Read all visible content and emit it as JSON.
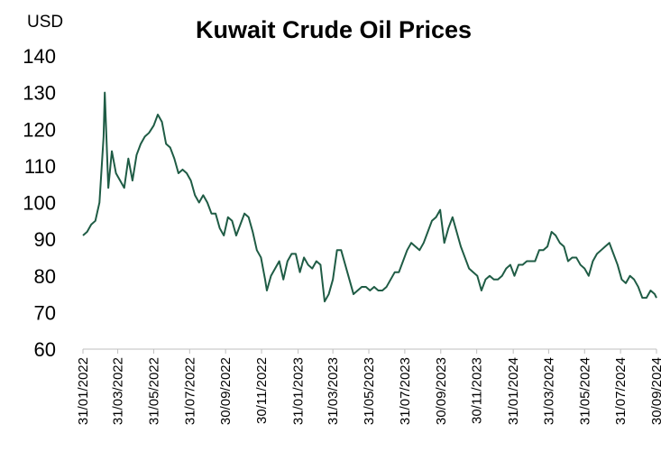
{
  "chart_data": {
    "type": "line",
    "title": "Kuwait Crude Oil Prices",
    "ylabel": "USD",
    "ylim": [
      60,
      140
    ],
    "yticks": [
      60,
      70,
      80,
      90,
      100,
      110,
      120,
      130,
      140
    ],
    "xlim": [
      "2022-01-31",
      "2024-09-30"
    ],
    "xticks": [
      {
        "value": "2022-01-31",
        "label": "31/01/2022"
      },
      {
        "value": "2022-03-31",
        "label": "31/03/2022"
      },
      {
        "value": "2022-05-31",
        "label": "31/05/2022"
      },
      {
        "value": "2022-07-31",
        "label": "31/07/2022"
      },
      {
        "value": "2022-09-30",
        "label": "30/09/2022"
      },
      {
        "value": "2022-11-30",
        "label": "30/11/2022"
      },
      {
        "value": "2023-01-31",
        "label": "31/01/2023"
      },
      {
        "value": "2023-03-31",
        "label": "31/03/2023"
      },
      {
        "value": "2023-05-31",
        "label": "31/05/2023"
      },
      {
        "value": "2023-07-31",
        "label": "31/07/2023"
      },
      {
        "value": "2023-09-30",
        "label": "30/09/2023"
      },
      {
        "value": "2023-11-30",
        "label": "30/11/2023"
      },
      {
        "value": "2024-01-31",
        "label": "31/01/2024"
      },
      {
        "value": "2024-03-31",
        "label": "31/03/2024"
      },
      {
        "value": "2024-05-31",
        "label": "31/05/2024"
      },
      {
        "value": "2024-07-31",
        "label": "31/07/2024"
      },
      {
        "value": "2024-09-30",
        "label": "30/09/2024"
      }
    ],
    "x": [
      "2022-01-31",
      "2022-02-07",
      "2022-02-14",
      "2022-02-21",
      "2022-02-28",
      "2022-03-07",
      "2022-03-09",
      "2022-03-15",
      "2022-03-21",
      "2022-03-28",
      "2022-04-04",
      "2022-04-11",
      "2022-04-18",
      "2022-04-25",
      "2022-05-02",
      "2022-05-09",
      "2022-05-16",
      "2022-05-23",
      "2022-05-31",
      "2022-06-07",
      "2022-06-14",
      "2022-06-21",
      "2022-06-28",
      "2022-07-05",
      "2022-07-12",
      "2022-07-19",
      "2022-07-26",
      "2022-08-02",
      "2022-08-09",
      "2022-08-16",
      "2022-08-23",
      "2022-08-30",
      "2022-09-06",
      "2022-09-13",
      "2022-09-20",
      "2022-09-27",
      "2022-10-04",
      "2022-10-11",
      "2022-10-18",
      "2022-10-25",
      "2022-11-01",
      "2022-11-08",
      "2022-11-15",
      "2022-11-22",
      "2022-11-29",
      "2022-12-06",
      "2022-12-09",
      "2022-12-16",
      "2022-12-23",
      "2022-12-30",
      "2023-01-06",
      "2023-01-13",
      "2023-01-20",
      "2023-01-27",
      "2023-02-03",
      "2023-02-10",
      "2023-02-17",
      "2023-02-24",
      "2023-03-03",
      "2023-03-10",
      "2023-03-17",
      "2023-03-24",
      "2023-03-31",
      "2023-04-07",
      "2023-04-14",
      "2023-04-21",
      "2023-04-28",
      "2023-05-05",
      "2023-05-12",
      "2023-05-19",
      "2023-05-26",
      "2023-06-02",
      "2023-06-09",
      "2023-06-16",
      "2023-06-23",
      "2023-06-30",
      "2023-07-07",
      "2023-07-14",
      "2023-07-21",
      "2023-07-28",
      "2023-08-04",
      "2023-08-11",
      "2023-08-18",
      "2023-08-25",
      "2023-09-01",
      "2023-09-08",
      "2023-09-15",
      "2023-09-22",
      "2023-09-29",
      "2023-10-06",
      "2023-10-13",
      "2023-10-20",
      "2023-10-27",
      "2023-11-03",
      "2023-11-10",
      "2023-11-17",
      "2023-11-24",
      "2023-12-01",
      "2023-12-08",
      "2023-12-15",
      "2023-12-22",
      "2023-12-29",
      "2024-01-05",
      "2024-01-12",
      "2024-01-19",
      "2024-01-26",
      "2024-02-02",
      "2024-02-09",
      "2024-02-16",
      "2024-02-23",
      "2024-03-01",
      "2024-03-08",
      "2024-03-15",
      "2024-03-22",
      "2024-03-29",
      "2024-04-05",
      "2024-04-12",
      "2024-04-19",
      "2024-04-26",
      "2024-05-03",
      "2024-05-10",
      "2024-05-17",
      "2024-05-24",
      "2024-05-31",
      "2024-06-07",
      "2024-06-14",
      "2024-06-21",
      "2024-06-28",
      "2024-07-05",
      "2024-07-12",
      "2024-07-19",
      "2024-07-26",
      "2024-08-02",
      "2024-08-09",
      "2024-08-16",
      "2024-08-23",
      "2024-08-30",
      "2024-09-06",
      "2024-09-13",
      "2024-09-20",
      "2024-09-27",
      "2024-09-30"
    ],
    "series": [
      {
        "color": "#1f5c45",
        "values": [
          91,
          92,
          94,
          95,
          100,
          118,
          130,
          104,
          114,
          108,
          106,
          104,
          112,
          106,
          113,
          116,
          118,
          119,
          121,
          124,
          122,
          116,
          115,
          112,
          108,
          109,
          108,
          106,
          102,
          100,
          102,
          100,
          97,
          97,
          93,
          91,
          96,
          95,
          91,
          94,
          97,
          96,
          92,
          87,
          85,
          79,
          76,
          80,
          82,
          84,
          79,
          84,
          86,
          86,
          81,
          85,
          83,
          82,
          84,
          83,
          73,
          75,
          79,
          87,
          87,
          83,
          79,
          75,
          76,
          77,
          77,
          76,
          77,
          76,
          76,
          77,
          79,
          81,
          81,
          84,
          87,
          89,
          88,
          87,
          89,
          92,
          95,
          96,
          98,
          89,
          93,
          96,
          92,
          88,
          85,
          82,
          81,
          80,
          76,
          79,
          80,
          79,
          79,
          80,
          82,
          83,
          80,
          83,
          83,
          84,
          84,
          84,
          87,
          87,
          88,
          92,
          91,
          89,
          88,
          84,
          85,
          85,
          83,
          82,
          80,
          84,
          86,
          87,
          88,
          89,
          86,
          83,
          79,
          78,
          80,
          79,
          77,
          74,
          74,
          76,
          75,
          74
        ]
      }
    ]
  }
}
